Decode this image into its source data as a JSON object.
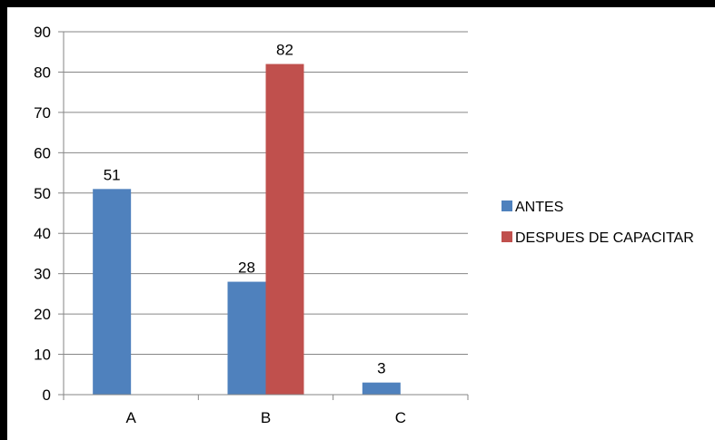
{
  "chart_data": {
    "type": "bar",
    "categories": [
      "A",
      "B",
      "C"
    ],
    "series": [
      {
        "name": "ANTES",
        "values": [
          51,
          28,
          3
        ],
        "color": "#4F81BD"
      },
      {
        "name": "DESPUES DE CAPACITAR",
        "values": [
          null,
          82,
          null
        ],
        "color": "#C0504D"
      }
    ],
    "title": "",
    "xlabel": "",
    "ylabel": "",
    "ylim": [
      0,
      90
    ],
    "yticks": [
      0,
      10,
      20,
      30,
      40,
      50,
      60,
      70,
      80,
      90
    ],
    "grid": true,
    "data_labels": true,
    "legend_position": "right"
  }
}
